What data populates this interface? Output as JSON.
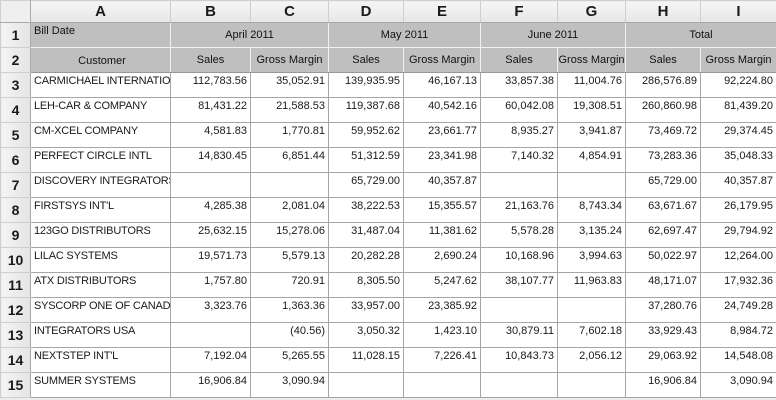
{
  "sheet": {
    "column_letters": [
      "A",
      "B",
      "C",
      "D",
      "E",
      "F",
      "G",
      "H",
      "I"
    ],
    "row_numbers": [
      "1",
      "2",
      "3",
      "4",
      "5",
      "6",
      "7",
      "8",
      "9",
      "10",
      "11",
      "12",
      "13",
      "14",
      "15"
    ],
    "header": {
      "bill_date_label": "Bill Date",
      "customer_label": "Customer",
      "month_groups": [
        "April 2011",
        "May 2011",
        "June 2011",
        "Total"
      ],
      "sub_headers": [
        "Sales",
        "Gross Margin"
      ]
    },
    "rows": [
      {
        "customer": "CARMICHAEL INTERNATIONAL",
        "values": [
          "112,783.56",
          "35,052.91",
          "139,935.95",
          "46,167.13",
          "33,857.38",
          "11,004.76",
          "286,576.89",
          "92,224.80"
        ]
      },
      {
        "customer": "LEH-CAR & COMPANY",
        "values": [
          "81,431.22",
          "21,588.53",
          "119,387.68",
          "40,542.16",
          "60,042.08",
          "19,308.51",
          "260,860.98",
          "81,439.20"
        ]
      },
      {
        "customer": "CM-XCEL COMPANY",
        "values": [
          "4,581.83",
          "1,770.81",
          "59,952.62",
          "23,661.77",
          "8,935.27",
          "3,941.87",
          "73,469.72",
          "29,374.45"
        ]
      },
      {
        "customer": "PERFECT CIRCLE INTL",
        "values": [
          "14,830.45",
          "6,851.44",
          "51,312.59",
          "23,341.98",
          "7,140.32",
          "4,854.91",
          "73,283.36",
          "35,048.33"
        ]
      },
      {
        "customer": "DISCOVERY INTEGRATORS",
        "values": [
          "",
          "",
          "65,729.00",
          "40,357.87",
          "",
          "",
          "65,729.00",
          "40,357.87"
        ]
      },
      {
        "customer": "FIRSTSYS INT'L",
        "values": [
          "4,285.38",
          "2,081.04",
          "38,222.53",
          "15,355.57",
          "21,163.76",
          "8,743.34",
          "63,671.67",
          "26,179.95"
        ]
      },
      {
        "customer": "123GO DISTRIBUTORS",
        "values": [
          "25,632.15",
          "15,278.06",
          "31,487.04",
          "11,381.62",
          "5,578.28",
          "3,135.24",
          "62,697.47",
          "29,794.92"
        ]
      },
      {
        "customer": "LILAC SYSTEMS",
        "values": [
          "19,571.73",
          "5,579.13",
          "20,282.28",
          "2,690.24",
          "10,168.96",
          "3,994.63",
          "50,022.97",
          "12,264.00"
        ]
      },
      {
        "customer": "ATX DISTRIBUTORS",
        "values": [
          "1,757.80",
          "720.91",
          "8,305.50",
          "5,247.62",
          "38,107.77",
          "11,963.83",
          "48,171.07",
          "17,932.36"
        ]
      },
      {
        "customer": "SYSCORP ONE OF CANADA",
        "values": [
          "3,323.76",
          "1,363.36",
          "33,957.00",
          "23,385.92",
          "",
          "",
          "37,280.76",
          "24,749.28"
        ]
      },
      {
        "customer": "INTEGRATORS USA",
        "values": [
          "",
          "(40.56)",
          "3,050.32",
          "1,423.10",
          "30,879.11",
          "7,602.18",
          "33,929.43",
          "8,984.72"
        ]
      },
      {
        "customer": "NEXTSTEP INT'L",
        "values": [
          "7,192.04",
          "5,265.55",
          "11,028.15",
          "7,226.41",
          "10,843.73",
          "2,056.12",
          "29,063.92",
          "14,548.08"
        ]
      },
      {
        "customer": "SUMMER SYSTEMS",
        "values": [
          "16,906.84",
          "3,090.94",
          "",
          "",
          "",
          "",
          "16,906.84",
          "3,090.94"
        ]
      }
    ],
    "colors": {
      "header_fill": "#bfbfbf",
      "grid_line": "#a6a6a6",
      "panel_fill": "#efefef"
    }
  }
}
